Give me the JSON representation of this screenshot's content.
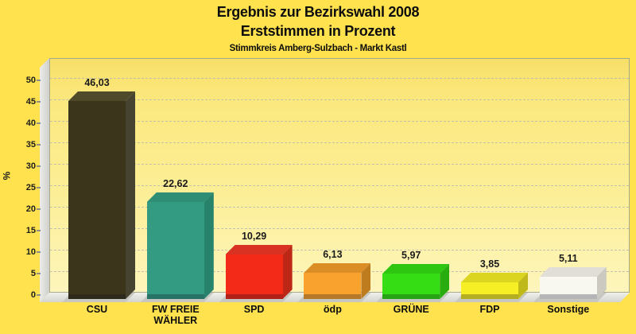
{
  "title": {
    "line1": "Ergebnis zur Bezirkswahl 2008",
    "line2": "Erststimmen in Prozent",
    "subtitle": "Stimmkreis Amberg-Sulzbach - Markt Kastl"
  },
  "chart_data": {
    "type": "bar",
    "title": "Ergebnis zur Bezirkswahl 2008 — Erststimmen in Prozent",
    "subtitle": "Stimmkreis Amberg-Sulzbach - Markt Kastl",
    "categories": [
      "CSU",
      "FW FREIE WÄHLER",
      "SPD",
      "ödp",
      "GRÜNE",
      "FDP",
      "Sonstige"
    ],
    "values": [
      46.03,
      22.62,
      10.29,
      6.13,
      5.97,
      3.85,
      5.11
    ],
    "value_labels": [
      "46,03",
      "22,62",
      "10,29",
      "6,13",
      "5,97",
      "3,85",
      "5,11"
    ],
    "xlabel": "",
    "ylabel": "%",
    "ylim": [
      0,
      50
    ],
    "yticks": [
      0,
      5,
      10,
      15,
      20,
      25,
      30,
      35,
      40,
      45,
      50
    ],
    "grid": "horizontal-dashed",
    "legend": "none",
    "style": "3d-bars",
    "colors": {
      "page_background": "#FFE24D",
      "plot_gradient_top": "#F7DF68",
      "plot_gradient_bottom": "#FDF5BC",
      "grid_color": "#B9B9B2",
      "wall_gray": "#D9D9D5",
      "bar_fronts": [
        "#3B361B",
        "#339B81",
        "#F32A18",
        "#F9A22E",
        "#35DE14",
        "#F6EF25",
        "#F8F7F0"
      ],
      "bar_tops": [
        "#4F4A29",
        "#2F8E76",
        "#D93222",
        "#DB8E25",
        "#2EC611",
        "#DCD520",
        "#E0DED6"
      ],
      "bar_sides": [
        "#474331",
        "#28836C",
        "#BC2716",
        "#BF7C1E",
        "#28AD0E",
        "#BFB91A",
        "#CBC9C0"
      ]
    }
  }
}
